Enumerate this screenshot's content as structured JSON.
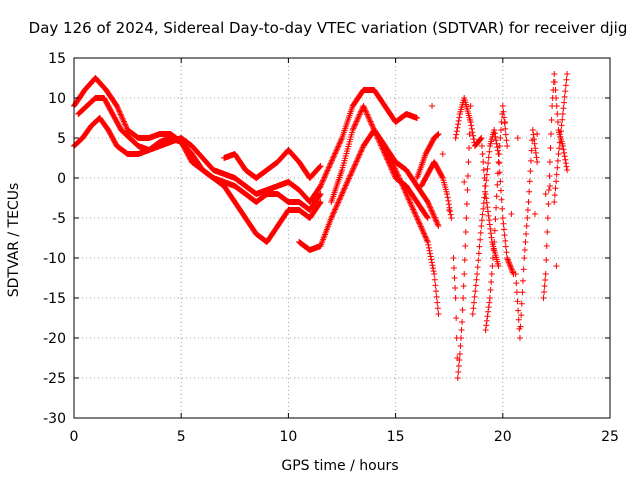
{
  "colors": {
    "series": "#ff0000",
    "frame": "#000000",
    "grid": "#a0a0a0"
  },
  "chart_data": {
    "type": "scatter",
    "title": "Day 126 of 2024, Sidereal Day-to-day VTEC variation (SDTVAR) for receiver djig",
    "xlabel": "GPS time / hours",
    "ylabel": "SDTVAR / TECUs",
    "xlim": [
      0,
      25
    ],
    "ylim": [
      -30,
      15
    ],
    "xticks": [
      0,
      5,
      10,
      15,
      20,
      25
    ],
    "yticks": [
      -30,
      -25,
      -20,
      -15,
      -10,
      -5,
      0,
      5,
      10,
      15
    ],
    "grid": true,
    "marker": "plus",
    "series": [
      {
        "name": "track-1",
        "x": [
          0.0,
          0.5,
          1.0,
          1.5,
          2.0,
          2.5,
          3.0,
          3.5,
          4.0,
          4.5,
          5.0,
          5.5,
          6.0,
          6.5,
          7.0,
          7.5,
          8.0,
          8.5,
          9.0,
          9.5,
          10.0,
          10.5,
          11.0,
          11.5
        ],
        "y": [
          9,
          11,
          12.5,
          11,
          9,
          6,
          5,
          5,
          5.5,
          5.5,
          4.5,
          2,
          1,
          0,
          -1,
          -3,
          -5,
          -7,
          -8,
          -6,
          -4,
          -4,
          -5,
          -3
        ]
      },
      {
        "name": "track-2",
        "x": [
          0.2,
          0.6,
          1.0,
          1.4,
          1.8,
          2.2,
          2.6,
          3.0,
          3.5,
          4.0,
          4.5,
          5.0,
          5.5,
          6.0,
          6.5,
          7.0,
          7.5,
          8.0,
          8.5,
          9.0,
          9.5,
          10.0,
          10.5,
          11.0,
          11.5,
          12.0,
          12.5,
          13.0,
          13.5,
          14.0,
          14.5,
          15.0,
          15.5,
          16.0
        ],
        "y": [
          8,
          9,
          10,
          10,
          8,
          6,
          5,
          4,
          3.5,
          4,
          4.5,
          5,
          4,
          2.5,
          1,
          0.5,
          0,
          -1,
          -2,
          -1.5,
          -1,
          -0.5,
          -1.5,
          -3,
          -1,
          2,
          5,
          9,
          11,
          11,
          9,
          7,
          8,
          7.5
        ]
      },
      {
        "name": "track-3",
        "x": [
          0.0,
          0.4,
          0.8,
          1.2,
          1.6,
          2.0,
          2.5,
          3.0,
          3.5,
          4.0,
          4.5,
          5.0,
          5.5,
          6.0,
          6.5,
          7.0,
          7.5,
          8.0,
          8.5,
          9.0,
          9.5,
          10.0,
          10.5,
          11.0,
          11.5
        ],
        "y": [
          4,
          5,
          6.5,
          7.5,
          6,
          4,
          3,
          3,
          3.5,
          4.5,
          5,
          4.5,
          3,
          1,
          0,
          -0.5,
          -1,
          -2,
          -3,
          -2,
          -2,
          -3,
          -3,
          -4,
          -2
        ]
      },
      {
        "name": "track-4",
        "x": [
          7.0,
          7.5,
          8.0,
          8.5,
          9.0,
          9.5,
          10.0,
          10.5,
          11.0,
          11.5
        ],
        "y": [
          2.5,
          3,
          1,
          0,
          1,
          2,
          3.5,
          2,
          0,
          1.5
        ]
      },
      {
        "name": "track-5",
        "x": [
          10.5,
          11.0,
          11.5,
          12.0,
          12.5,
          13.0,
          13.5,
          14.0,
          14.5,
          15.0,
          15.5,
          16.0,
          16.5,
          17.0
        ],
        "y": [
          -8,
          -9,
          -8.5,
          -5,
          -2,
          1,
          4,
          6,
          4,
          2,
          1,
          -1,
          -3,
          -6
        ]
      },
      {
        "name": "track-6",
        "x": [
          14.0,
          14.5,
          15.0,
          15.5,
          16.0,
          16.5,
          16.8,
          17.0
        ],
        "y": [
          6,
          4,
          1,
          -2,
          -5,
          -8,
          -12,
          -17
        ]
      },
      {
        "name": "track-7",
        "x": [
          12.0,
          12.5,
          13.0,
          13.5,
          14.0,
          14.5,
          15.0,
          15.5,
          16.0,
          16.5
        ],
        "y": [
          -3,
          1,
          6,
          9,
          6,
          3,
          0,
          -1,
          -3,
          -5
        ]
      },
      {
        "name": "track-8",
        "x": [
          16.0,
          16.4,
          16.8,
          17.0
        ],
        "y": [
          0,
          3,
          5,
          5.5
        ]
      },
      {
        "name": "track-9",
        "x": [
          16.2,
          16.5,
          16.8,
          17.2,
          17.4,
          17.6
        ],
        "y": [
          -1,
          0.5,
          2,
          0,
          -2,
          -5
        ]
      },
      {
        "name": "track-10",
        "x": [
          17.7,
          17.8,
          17.9,
          18.0,
          18.1,
          18.2,
          18.3,
          18.4,
          18.5
        ],
        "y": [
          -10,
          -15,
          -25,
          -22,
          -18,
          -12,
          -5,
          2,
          9
        ]
      },
      {
        "name": "track-11",
        "x": [
          17.8,
          18.0,
          18.2,
          18.5,
          18.7,
          19.0,
          19.2,
          19.5,
          19.8
        ],
        "y": [
          5,
          8,
          10,
          7,
          4,
          5,
          -2,
          -8,
          -11
        ]
      },
      {
        "name": "track-12",
        "x": [
          18.6,
          18.8,
          19.0,
          19.2,
          19.4,
          19.6,
          19.8,
          20.0,
          20.2,
          20.5
        ],
        "y": [
          -17,
          -12,
          -6,
          -1,
          4,
          6,
          3,
          -5,
          -10,
          -12
        ]
      },
      {
        "name": "track-13",
        "x": [
          19.2,
          19.4,
          19.6,
          19.8,
          20.0,
          20.2
        ],
        "y": [
          -19,
          -15,
          -8,
          2,
          9,
          4
        ]
      },
      {
        "name": "track-14",
        "x": [
          20.6,
          20.8,
          21.0,
          21.2,
          21.4,
          21.6
        ],
        "y": [
          -12,
          -20,
          -10,
          -3,
          6,
          2
        ]
      },
      {
        "name": "track-15",
        "x": [
          21.9,
          22.0,
          22.1,
          22.2,
          22.3,
          22.4,
          22.6,
          22.8,
          23.0
        ],
        "y": [
          -15,
          -12,
          -5,
          2,
          9,
          13,
          6,
          4,
          1
        ]
      },
      {
        "name": "track-16",
        "x": [
          22.4,
          22.6,
          22.8,
          23.0
        ],
        "y": [
          -3,
          3,
          8,
          13
        ]
      }
    ],
    "scatter_points": [
      {
        "x": 20.7,
        "y": 5
      },
      {
        "x": 20.4,
        "y": -4.5
      },
      {
        "x": 21.6,
        "y": 5.5
      },
      {
        "x": 21.5,
        "y": -4.5
      },
      {
        "x": 22.0,
        "y": -2
      },
      {
        "x": 22.5,
        "y": -11
      },
      {
        "x": 18.2,
        "y": -0.5
      },
      {
        "x": 16.7,
        "y": 9
      },
      {
        "x": 17.2,
        "y": 3
      },
      {
        "x": 20.1,
        "y": 7
      },
      {
        "x": 17.5,
        "y": -4
      },
      {
        "x": 22.2,
        "y": -1
      }
    ]
  }
}
